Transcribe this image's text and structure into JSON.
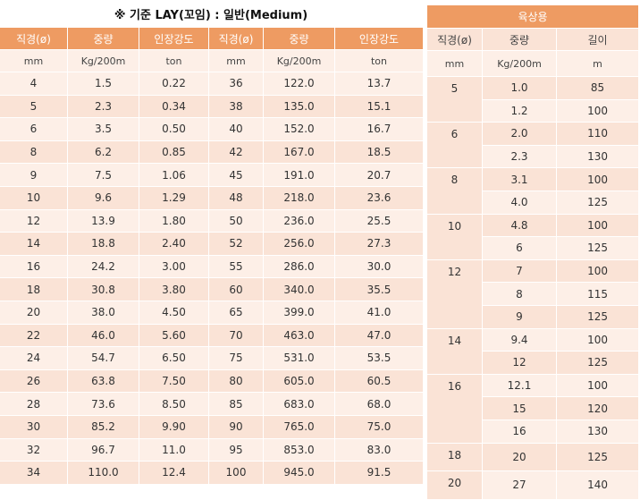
{
  "caption": "※ 기준 LAY(꼬임) : 일반(Medium)",
  "main": {
    "headers": [
      "직경(ø)",
      "중량",
      "인장강도",
      "직경(ø)",
      "중량",
      "인장강도"
    ],
    "units": [
      "mm",
      "Kg/200m",
      "ton",
      "mm",
      "Kg/200m",
      "ton"
    ],
    "rows": [
      [
        "4",
        "1.5",
        "0.22",
        "36",
        "122.0",
        "13.7"
      ],
      [
        "5",
        "2.3",
        "0.34",
        "38",
        "135.0",
        "15.1"
      ],
      [
        "6",
        "3.5",
        "0.50",
        "40",
        "152.0",
        "16.7"
      ],
      [
        "8",
        "6.2",
        "0.85",
        "42",
        "167.0",
        "18.5"
      ],
      [
        "9",
        "7.5",
        "1.06",
        "45",
        "191.0",
        "20.7"
      ],
      [
        "10",
        "9.6",
        "1.29",
        "48",
        "218.0",
        "23.6"
      ],
      [
        "12",
        "13.9",
        "1.80",
        "50",
        "236.0",
        "25.5"
      ],
      [
        "14",
        "18.8",
        "2.40",
        "52",
        "256.0",
        "27.3"
      ],
      [
        "16",
        "24.2",
        "3.00",
        "55",
        "286.0",
        "30.0"
      ],
      [
        "18",
        "30.8",
        "3.80",
        "60",
        "340.0",
        "35.5"
      ],
      [
        "20",
        "38.0",
        "4.50",
        "65",
        "399.0",
        "41.0"
      ],
      [
        "22",
        "46.0",
        "5.60",
        "70",
        "463.0",
        "47.0"
      ],
      [
        "24",
        "54.7",
        "6.50",
        "75",
        "531.0",
        "53.5"
      ],
      [
        "26",
        "63.8",
        "7.50",
        "80",
        "605.0",
        "60.5"
      ],
      [
        "28",
        "73.6",
        "8.50",
        "85",
        "683.0",
        "68.0"
      ],
      [
        "30",
        "85.2",
        "9.90",
        "90",
        "765.0",
        "75.0"
      ],
      [
        "32",
        "96.7",
        "11.0",
        "95",
        "853.0",
        "83.0"
      ],
      [
        "34",
        "110.0",
        "12.4",
        "100",
        "945.0",
        "91.5"
      ]
    ]
  },
  "marine": {
    "title": "육상용",
    "headers": [
      "직경(ø)",
      "중량",
      "길이"
    ],
    "units": [
      "mm",
      "Kg/200m",
      "m"
    ],
    "groups": [
      {
        "diameter": "5",
        "rows": [
          [
            "1.0",
            "85"
          ],
          [
            "1.2",
            "100"
          ]
        ]
      },
      {
        "diameter": "6",
        "rows": [
          [
            "2.0",
            "110"
          ],
          [
            "2.3",
            "130"
          ]
        ]
      },
      {
        "diameter": "8",
        "rows": [
          [
            "3.1",
            "100"
          ],
          [
            "4.0",
            "125"
          ]
        ]
      },
      {
        "diameter": "10",
        "rows": [
          [
            "4.8",
            "100"
          ],
          [
            "6",
            "125"
          ]
        ]
      },
      {
        "diameter": "12",
        "rows": [
          [
            "7",
            "100"
          ],
          [
            "8",
            "115"
          ],
          [
            "9",
            "125"
          ]
        ]
      },
      {
        "diameter": "14",
        "rows": [
          [
            "9.4",
            "100"
          ],
          [
            "12",
            "125"
          ]
        ]
      },
      {
        "diameter": "16",
        "rows": [
          [
            "12.1",
            "100"
          ],
          [
            "15",
            "120"
          ],
          [
            "16",
            "130"
          ]
        ]
      },
      {
        "diameter": "18",
        "rows": [
          [
            "20",
            "125"
          ]
        ]
      },
      {
        "diameter": "20",
        "rows": [
          [
            "27",
            "140"
          ]
        ]
      }
    ]
  }
}
